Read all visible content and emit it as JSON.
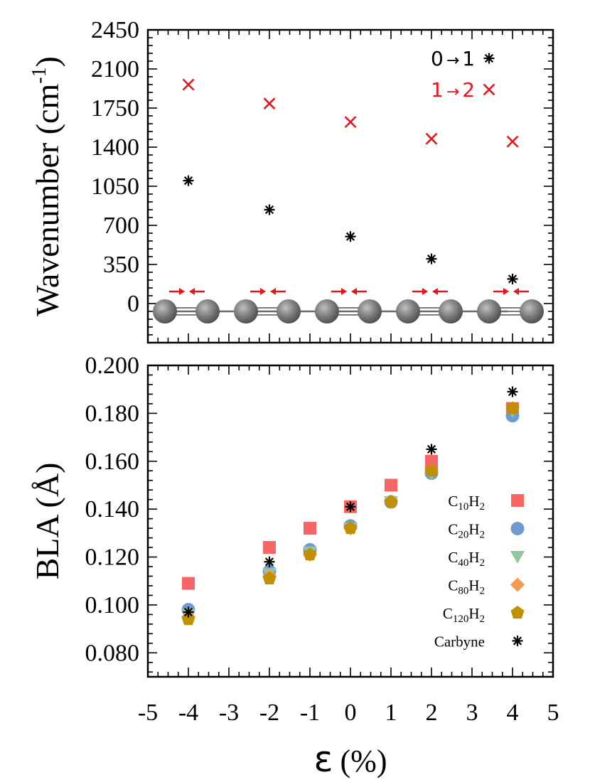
{
  "chart_data": [
    {
      "type": "scatter",
      "panel": "top",
      "ylabel": "Wavenumber (cm",
      "ylabel_sup": "-1",
      "ylabel_close": ")",
      "ylim": [
        -350,
        2450
      ],
      "xlim": [
        -5,
        5
      ],
      "yticks": [
        0,
        350,
        700,
        1050,
        1400,
        1750,
        2100,
        2450
      ],
      "legend_position": "top-right",
      "series": [
        {
          "name": "0→1",
          "label_parts": [
            "0",
            "→",
            "1"
          ],
          "marker": "asterisk",
          "color": "#000000",
          "x": [
            -4,
            -2,
            0,
            2,
            4
          ],
          "y": [
            1100,
            840,
            600,
            400,
            220
          ]
        },
        {
          "name": "1→2",
          "label_parts": [
            "1",
            "→",
            "2"
          ],
          "marker": "x",
          "color": "#e8141c",
          "x": [
            -4,
            -2,
            0,
            2,
            4
          ],
          "y": [
            1960,
            1790,
            1625,
            1475,
            1450
          ]
        }
      ],
      "annotation": "carbyne chain pairs with red compression arrows"
    },
    {
      "type": "scatter",
      "panel": "bottom",
      "ylabel": "BLA (Å)",
      "xlabel_symbol": "ε",
      "xlabel_unit": "(%)",
      "xlim": [
        -5,
        5
      ],
      "ylim": [
        0.07,
        0.2
      ],
      "xticks": [
        -5,
        -4,
        -3,
        -2,
        -1,
        0,
        1,
        2,
        3,
        4,
        5
      ],
      "yticks": [
        "0.080",
        "0.100",
        "0.120",
        "0.140",
        "0.160",
        "0.180",
        "0.200"
      ],
      "legend_position": "lower-right",
      "series": [
        {
          "name": "C10H2",
          "sub1": "10",
          "marker": "square",
          "color": "#f86565",
          "x": [
            -4,
            -2,
            -1,
            0,
            1,
            2,
            4
          ],
          "y": [
            0.109,
            0.124,
            0.132,
            0.141,
            0.15,
            0.16,
            0.182
          ]
        },
        {
          "name": "C20H2",
          "sub1": "20",
          "marker": "circle",
          "color": "#6f9bd0",
          "x": [
            -4,
            -2,
            -1,
            0,
            1,
            2,
            4
          ],
          "y": [
            0.098,
            0.114,
            0.123,
            0.133,
            0.143,
            0.155,
            0.179
          ]
        },
        {
          "name": "C40H2",
          "sub1": "40",
          "marker": "triangle",
          "color": "#94c4a4",
          "x": [
            -4,
            -2,
            -1,
            0,
            1,
            2,
            4
          ],
          "y": [
            0.096,
            0.113,
            0.122,
            0.132,
            0.143,
            0.155,
            0.181
          ]
        },
        {
          "name": "C80H2",
          "sub1": "80",
          "marker": "diamond",
          "color": "#f59a4c",
          "x": [
            -4,
            -2,
            -1,
            0,
            1,
            2,
            4
          ],
          "y": [
            0.095,
            0.112,
            0.121,
            0.132,
            0.143,
            0.156,
            0.182
          ]
        },
        {
          "name": "C120H2",
          "sub1": "120",
          "marker": "pentagon",
          "color": "#c09000",
          "x": [
            -4,
            -2,
            -1,
            0,
            1,
            2,
            4
          ],
          "y": [
            0.094,
            0.111,
            0.121,
            0.132,
            0.143,
            0.156,
            0.182
          ]
        },
        {
          "name": "Carbyne",
          "sub1": "",
          "marker": "asterisk",
          "color": "#000000",
          "x": [
            -4,
            -2,
            0,
            2,
            4
          ],
          "y": [
            0.097,
            0.118,
            0.141,
            0.165,
            0.189
          ]
        }
      ]
    }
  ]
}
